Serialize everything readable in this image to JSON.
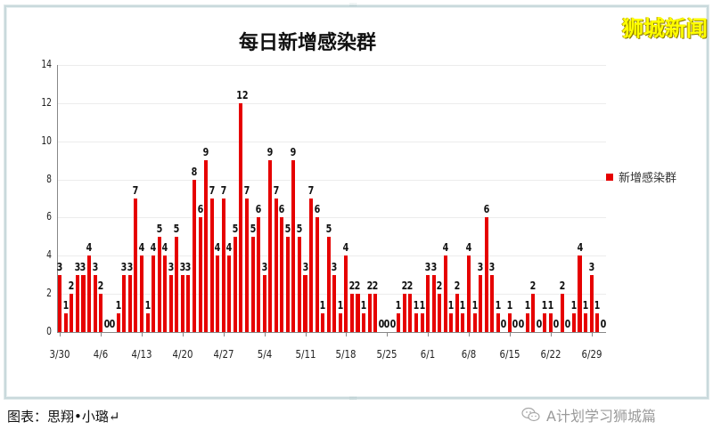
{
  "watermark": "狮城新闻",
  "footer": {
    "caption": "图表：思翔•小璐↵",
    "account": "A计划学习狮城篇"
  },
  "colors": {
    "bar": "#e60000",
    "watermark": "#ffff00"
  },
  "chart_data": {
    "type": "bar",
    "title": "每日新增感染群",
    "xlabel": "",
    "ylabel": "",
    "ylim": [
      0,
      14
    ],
    "yticks": [
      0,
      2,
      4,
      6,
      8,
      10,
      12,
      14
    ],
    "grid": true,
    "legend_position": "right",
    "x_tick_labels": [
      "3/30",
      "4/6",
      "4/13",
      "4/20",
      "4/27",
      "5/4",
      "5/11",
      "5/18",
      "5/25",
      "6/1",
      "6/8",
      "6/15",
      "6/22",
      "6/29"
    ],
    "x_tick_every": 7,
    "categories": [
      "3/30",
      "3/31",
      "4/1",
      "4/2",
      "4/3",
      "4/4",
      "4/5",
      "4/6",
      "4/7",
      "4/8",
      "4/9",
      "4/10",
      "4/11",
      "4/12",
      "4/13",
      "4/14",
      "4/15",
      "4/16",
      "4/17",
      "4/18",
      "4/19",
      "4/20",
      "4/21",
      "4/22",
      "4/23",
      "4/24",
      "4/25",
      "4/26",
      "4/27",
      "4/28",
      "4/29",
      "4/30",
      "5/1",
      "5/2",
      "5/3",
      "5/4",
      "5/5",
      "5/6",
      "5/7",
      "5/8",
      "5/9",
      "5/10",
      "5/11",
      "5/12",
      "5/13",
      "5/14",
      "5/15",
      "5/16",
      "5/17",
      "5/18",
      "5/19",
      "5/20",
      "5/21",
      "5/22",
      "5/23",
      "5/24",
      "5/25",
      "5/26",
      "5/27",
      "5/28",
      "5/29",
      "5/30",
      "5/31",
      "6/1",
      "6/2",
      "6/3",
      "6/4",
      "6/5",
      "6/6",
      "6/7",
      "6/8",
      "6/9",
      "6/10",
      "6/11",
      "6/12",
      "6/13",
      "6/14",
      "6/15",
      "6/16",
      "6/17",
      "6/18",
      "6/19",
      "6/20",
      "6/21",
      "6/22",
      "6/23",
      "6/24",
      "6/25",
      "6/26",
      "6/27",
      "6/28",
      "6/29",
      "6/30",
      "7/1"
    ],
    "series": [
      {
        "name": "新增感染群",
        "color": "#e60000",
        "values": [
          3,
          1,
          2,
          3,
          3,
          4,
          3,
          2,
          0,
          0,
          1,
          3,
          3,
          7,
          4,
          1,
          4,
          5,
          4,
          3,
          5,
          3,
          3,
          8,
          6,
          9,
          7,
          4,
          7,
          4,
          5,
          12,
          7,
          5,
          6,
          3,
          9,
          7,
          6,
          5,
          9,
          5,
          3,
          7,
          6,
          1,
          5,
          3,
          1,
          4,
          2,
          2,
          1,
          2,
          2,
          0,
          0,
          0,
          1,
          2,
          2,
          1,
          1,
          3,
          3,
          2,
          4,
          1,
          2,
          1,
          4,
          1,
          3,
          6,
          3,
          1,
          0,
          1,
          0,
          0,
          1,
          2,
          0,
          1,
          1,
          0,
          2,
          0,
          1,
          4,
          1,
          3,
          1,
          0
        ]
      }
    ]
  }
}
